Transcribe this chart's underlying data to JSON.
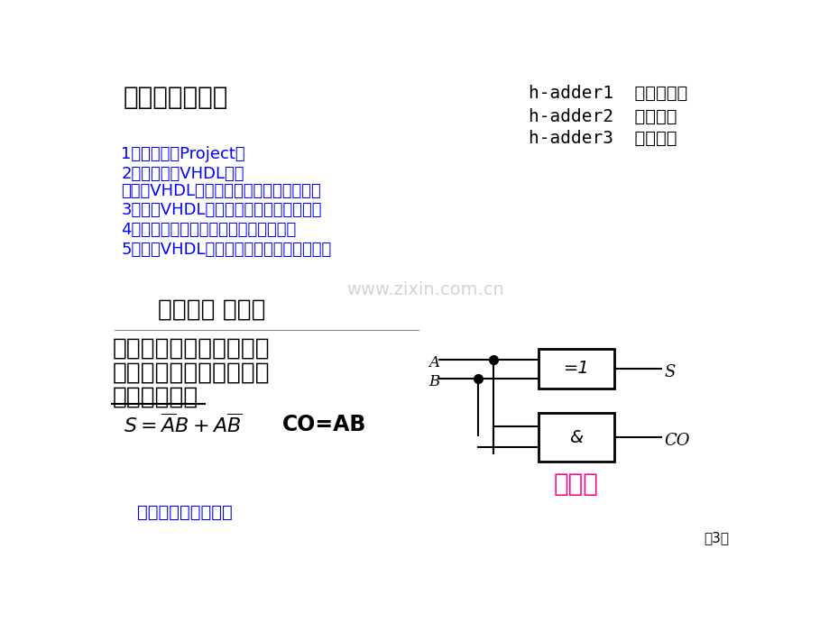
{
  "bg_color": "#FFFFFF",
  "blue_color": "#0000FF",
  "black_color": "#000000",
  "magenta_color": "#FF0088",
  "gray_color": "#BBBBCC",
  "top_left_title": "三、试验步骤：",
  "top_right_lines": [
    "h-adder1  真值表描述",
    "h-adder2  行为描述",
    "h-adder3  结构描述"
  ],
  "blue_lines": [
    "1、建立一个Project。",
    "2、编辑一个VHDL程序",
    "要求用VHDL结构描述方法设计一个半加器",
    "3、对该VHDL程序进行编译，修改错误。",
    "4、建立一个波形文件。（依据真值表）",
    "5、对该VHDL程序进行功效仿真和时序仿真"
  ],
  "watermark": "www.zixin.com.cn",
  "section_title": "（一）、 半加器",
  "desc_lines": [
    "半加器是只考虑两个加数",
    "本身，而不考虑来自低位",
    "进位逻辑电路"
  ],
  "formula_co": "CO=AB",
  "bottom_link": "半加器几个描述方法",
  "page_num": "第3页",
  "diagram_label": "逻辑图",
  "figsize": [
    9.2,
    6.9
  ],
  "dpi": 100
}
